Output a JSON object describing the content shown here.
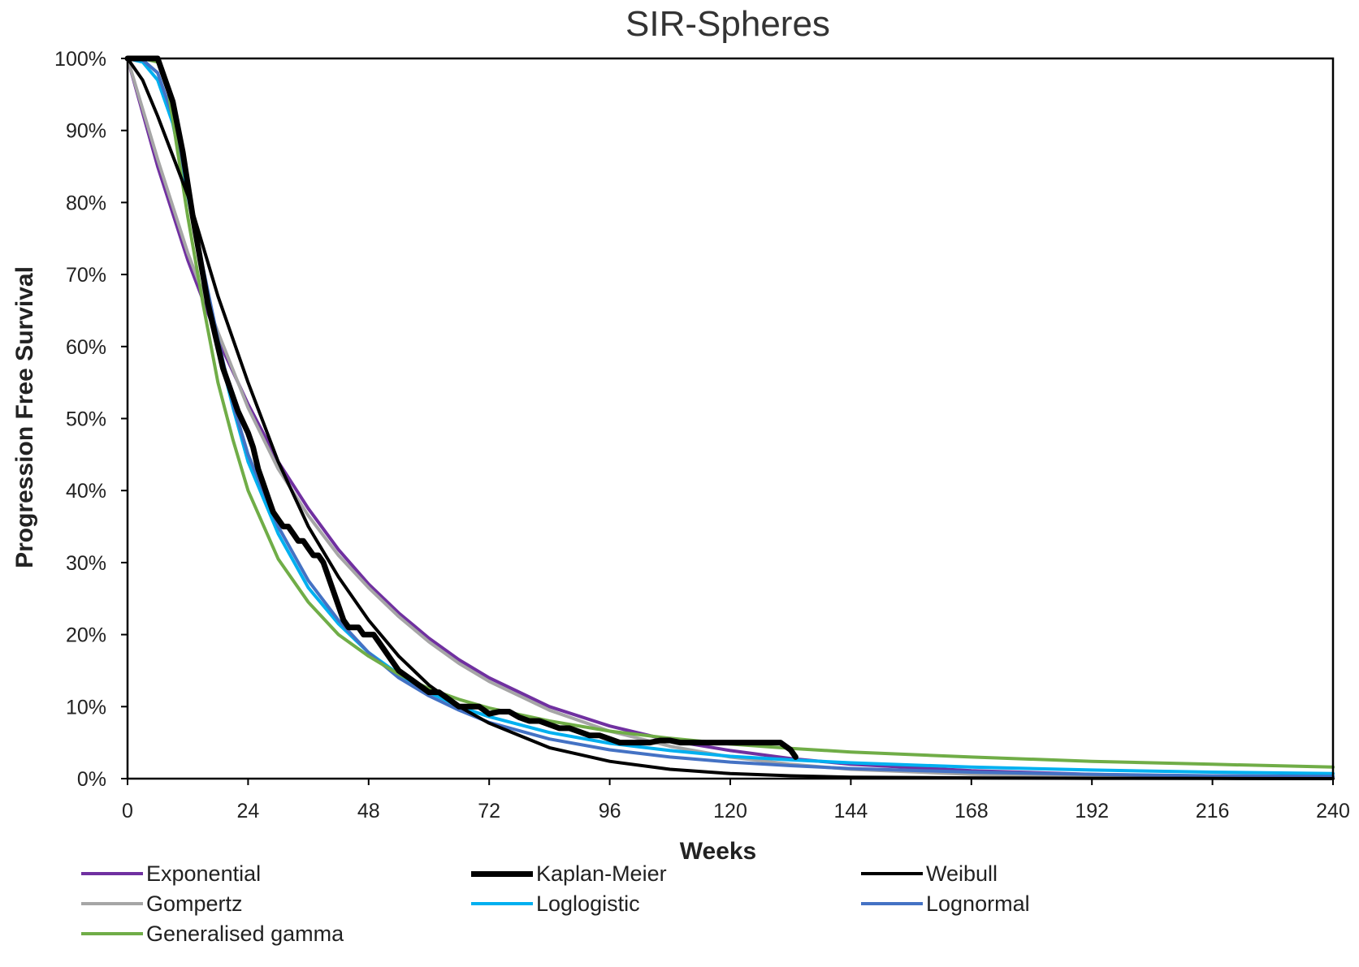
{
  "chart_data": {
    "type": "line",
    "title": "SIR-Spheres",
    "xlabel": "Weeks",
    "ylabel": "Progression Free Survival",
    "xlim": [
      0,
      240
    ],
    "ylim": [
      0,
      100
    ],
    "x_ticks": [
      "0",
      "24",
      "48",
      "72",
      "96",
      "120",
      "144",
      "168",
      "192",
      "216",
      "240"
    ],
    "y_ticks": [
      "0%",
      "10%",
      "20%",
      "30%",
      "40%",
      "50%",
      "60%",
      "70%",
      "80%",
      "90%",
      "100%"
    ],
    "grid": false,
    "legend_position": "bottom",
    "series": [
      {
        "name": "Exponential",
        "color": "#7030A0",
        "width": 4,
        "x": [
          0,
          6,
          12,
          18,
          24,
          30,
          36,
          42,
          48,
          54,
          60,
          66,
          72,
          84,
          96,
          108,
          120,
          132,
          144,
          168,
          192,
          216,
          240
        ],
        "y": [
          100,
          85,
          72,
          61,
          52,
          44,
          37.5,
          31.8,
          27,
          23,
          19.5,
          16.5,
          14,
          10,
          7.3,
          5.3,
          3.9,
          2.8,
          2.0,
          1.1,
          0.6,
          0.3,
          0.1
        ]
      },
      {
        "name": "Kaplan-Meier",
        "color": "#000000",
        "width": 7,
        "x": [
          0,
          4,
          6,
          7,
          9,
          11,
          13,
          15,
          16,
          17,
          19,
          20,
          22,
          24,
          25,
          26,
          27,
          28,
          29,
          30,
          31,
          32,
          33,
          34,
          35,
          36,
          37,
          38,
          39,
          40,
          41,
          42,
          43,
          44,
          45,
          46,
          47,
          48,
          49,
          50,
          51,
          52,
          54,
          56,
          58,
          60,
          62,
          64,
          66,
          68,
          70,
          72,
          74,
          76,
          78,
          80,
          82,
          84,
          86,
          88,
          90,
          92,
          94,
          96,
          98,
          100,
          102,
          104,
          106,
          108,
          110,
          112,
          114,
          116,
          118,
          120,
          122,
          124,
          126,
          128,
          130,
          132,
          133
        ],
        "y": [
          100,
          100,
          100,
          98,
          94,
          87,
          78,
          70,
          66,
          63,
          57,
          55,
          51,
          48,
          46,
          43,
          41,
          39,
          37,
          36,
          35,
          35,
          34,
          33,
          33,
          32,
          31,
          31,
          30,
          28,
          26,
          24,
          22,
          21,
          21,
          21,
          20,
          20,
          20,
          19,
          18,
          17,
          15,
          14,
          13,
          12,
          12,
          11,
          10,
          10,
          10,
          9,
          9.3,
          9.3,
          8.5,
          8,
          8,
          7.5,
          7,
          7,
          6.5,
          6,
          6,
          5.5,
          5,
          5,
          5,
          5,
          5.3,
          5.3,
          5,
          5,
          5,
          5,
          5,
          5,
          5,
          5,
          5,
          5,
          5,
          4,
          3
        ]
      },
      {
        "name": "Weibull",
        "color": "#000000",
        "width": 4,
        "x": [
          0,
          3,
          6,
          12,
          18,
          24,
          30,
          36,
          42,
          48,
          54,
          60,
          66,
          72,
          84,
          96,
          108,
          120,
          132,
          144,
          168,
          192,
          216,
          240
        ],
        "y": [
          100,
          97,
          92,
          81,
          67,
          55,
          44,
          35,
          28,
          22,
          17,
          13,
          10,
          7.7,
          4.3,
          2.4,
          1.3,
          0.7,
          0.4,
          0.2,
          0.1,
          0.05,
          0.02,
          0
        ]
      },
      {
        "name": "Gompertz",
        "color": "#A6A6A6",
        "width": 4,
        "x": [
          0,
          6,
          12,
          18,
          24,
          30,
          36,
          42,
          48,
          54,
          60,
          66,
          72,
          84,
          96,
          108,
          120,
          132,
          144,
          168,
          192,
          216,
          240
        ],
        "y": [
          100,
          86,
          73,
          62,
          51.5,
          43,
          36.5,
          31,
          26.5,
          22.5,
          19,
          16,
          13.5,
          9.5,
          6.6,
          4.5,
          3.0,
          2.0,
          1.3,
          0.6,
          0.3,
          0.15,
          0.1
        ]
      },
      {
        "name": "Loglogistic",
        "color": "#00B0F0",
        "width": 4,
        "x": [
          0,
          3,
          6,
          9,
          12,
          15,
          18,
          21,
          24,
          30,
          36,
          42,
          48,
          54,
          60,
          66,
          72,
          84,
          96,
          108,
          120,
          132,
          144,
          168,
          192,
          216,
          240
        ],
        "y": [
          100,
          99.5,
          97,
          91,
          81,
          70,
          60,
          51.5,
          44,
          34,
          26.5,
          21.5,
          17.5,
          14.5,
          12,
          10,
          8.6,
          6.4,
          4.9,
          3.9,
          3.1,
          2.6,
          2.2,
          1.6,
          1.2,
          0.9,
          0.7
        ]
      },
      {
        "name": "Lognormal",
        "color": "#4472C4",
        "width": 4,
        "x": [
          0,
          3,
          6,
          9,
          12,
          15,
          18,
          21,
          24,
          30,
          36,
          42,
          48,
          54,
          60,
          66,
          72,
          84,
          96,
          108,
          120,
          132,
          144,
          168,
          192,
          216,
          240
        ],
        "y": [
          100,
          99.8,
          98,
          92,
          82,
          71,
          61,
          52,
          45,
          35,
          27.5,
          22,
          17.5,
          14,
          11.5,
          9.5,
          7.8,
          5.5,
          4.0,
          3.0,
          2.3,
          1.8,
          1.4,
          0.9,
          0.6,
          0.4,
          0.3
        ]
      },
      {
        "name": "Generalised gamma",
        "color": "#70AD47",
        "width": 4,
        "x": [
          0,
          3,
          6,
          8,
          10,
          12,
          15,
          18,
          21,
          24,
          30,
          36,
          42,
          48,
          54,
          60,
          66,
          72,
          84,
          96,
          108,
          120,
          132,
          144,
          168,
          192,
          216,
          240
        ],
        "y": [
          100,
          100,
          99.5,
          96,
          87,
          78,
          66,
          55,
          47,
          40,
          30.5,
          24.5,
          20,
          17,
          14.5,
          12.5,
          11,
          9.8,
          8.0,
          6.6,
          5.6,
          4.8,
          4.2,
          3.7,
          3.0,
          2.4,
          2.0,
          1.6
        ]
      }
    ]
  }
}
